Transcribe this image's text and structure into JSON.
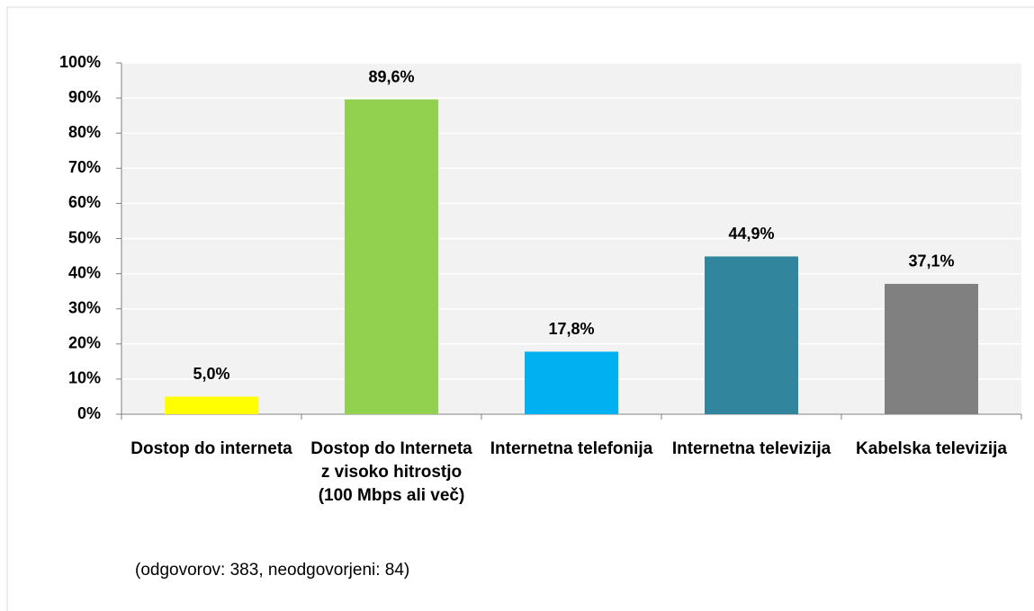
{
  "chart_data": {
    "type": "bar",
    "categories": [
      "Dostop do interneta",
      "Dostop do Interneta z visoko hitrostjo (100 Mbps ali več)",
      "Internetna telefonija",
      "Internetna televizija",
      "Kabelska televizija"
    ],
    "values": [
      5.0,
      89.6,
      17.8,
      44.9,
      37.1
    ],
    "value_labels": [
      "5,0%",
      "89,6%",
      "17,8%",
      "44,9%",
      "37,1%"
    ],
    "colors": [
      "#ffff00",
      "#92d050",
      "#00b0f0",
      "#31859c",
      "#808080"
    ],
    "ylim": [
      0,
      100
    ],
    "yticks": [
      {
        "value": 0,
        "label": "0%"
      },
      {
        "value": 10,
        "label": "10%"
      },
      {
        "value": 20,
        "label": "20%"
      },
      {
        "value": 30,
        "label": "30%"
      },
      {
        "value": 40,
        "label": "40%"
      },
      {
        "value": 50,
        "label": "50%"
      },
      {
        "value": 60,
        "label": "60%"
      },
      {
        "value": 70,
        "label": "70%"
      },
      {
        "value": 80,
        "label": "80%"
      },
      {
        "value": 90,
        "label": "90%"
      },
      {
        "value": 100,
        "label": "100%"
      }
    ],
    "grid": true,
    "note": "(odgovorov: 383, neodgovorjeni: 84)"
  }
}
